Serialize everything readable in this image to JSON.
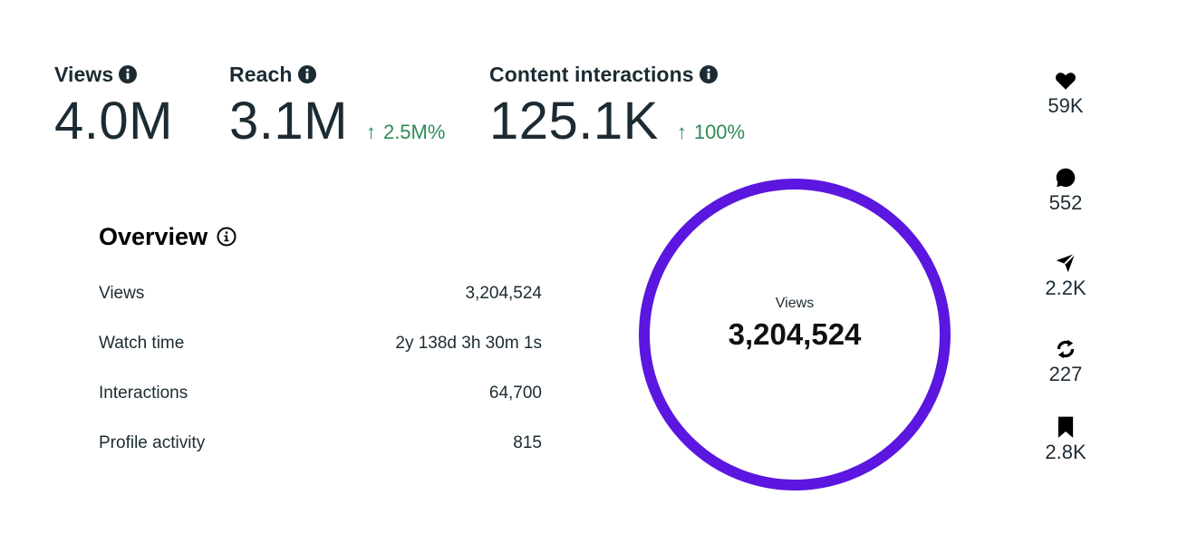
{
  "metrics": [
    {
      "title": "Views",
      "value": "4.0M",
      "delta": ""
    },
    {
      "title": "Reach",
      "value": "3.1M",
      "delta_arrow": "↑",
      "delta": "2.5M%"
    },
    {
      "title": "Content interactions",
      "value": "125.1K",
      "delta_arrow": "↑",
      "delta": "100%"
    }
  ],
  "overview": {
    "title": "Overview",
    "rows": [
      {
        "label": "Views",
        "value": "3,204,524"
      },
      {
        "label": "Watch time",
        "value": "2y 138d 3h 30m 1s"
      },
      {
        "label": "Interactions",
        "value": "64,700"
      },
      {
        "label": "Profile activity",
        "value": "815"
      }
    ]
  },
  "ring": {
    "caption": "Views",
    "value": "3,204,524",
    "color": "#5b16e0",
    "fill_fraction": 1.0
  },
  "side_stats": [
    {
      "icon": "heart-icon",
      "value": "59K"
    },
    {
      "icon": "comment-icon",
      "value": "552"
    },
    {
      "icon": "send-icon",
      "value": "2.2K"
    },
    {
      "icon": "repost-icon",
      "value": "227"
    },
    {
      "icon": "bookmark-icon",
      "value": "2.8K"
    }
  ],
  "colors": {
    "text": "#1c2b33",
    "positive": "#2e8b57",
    "ring": "#5b16e0"
  }
}
